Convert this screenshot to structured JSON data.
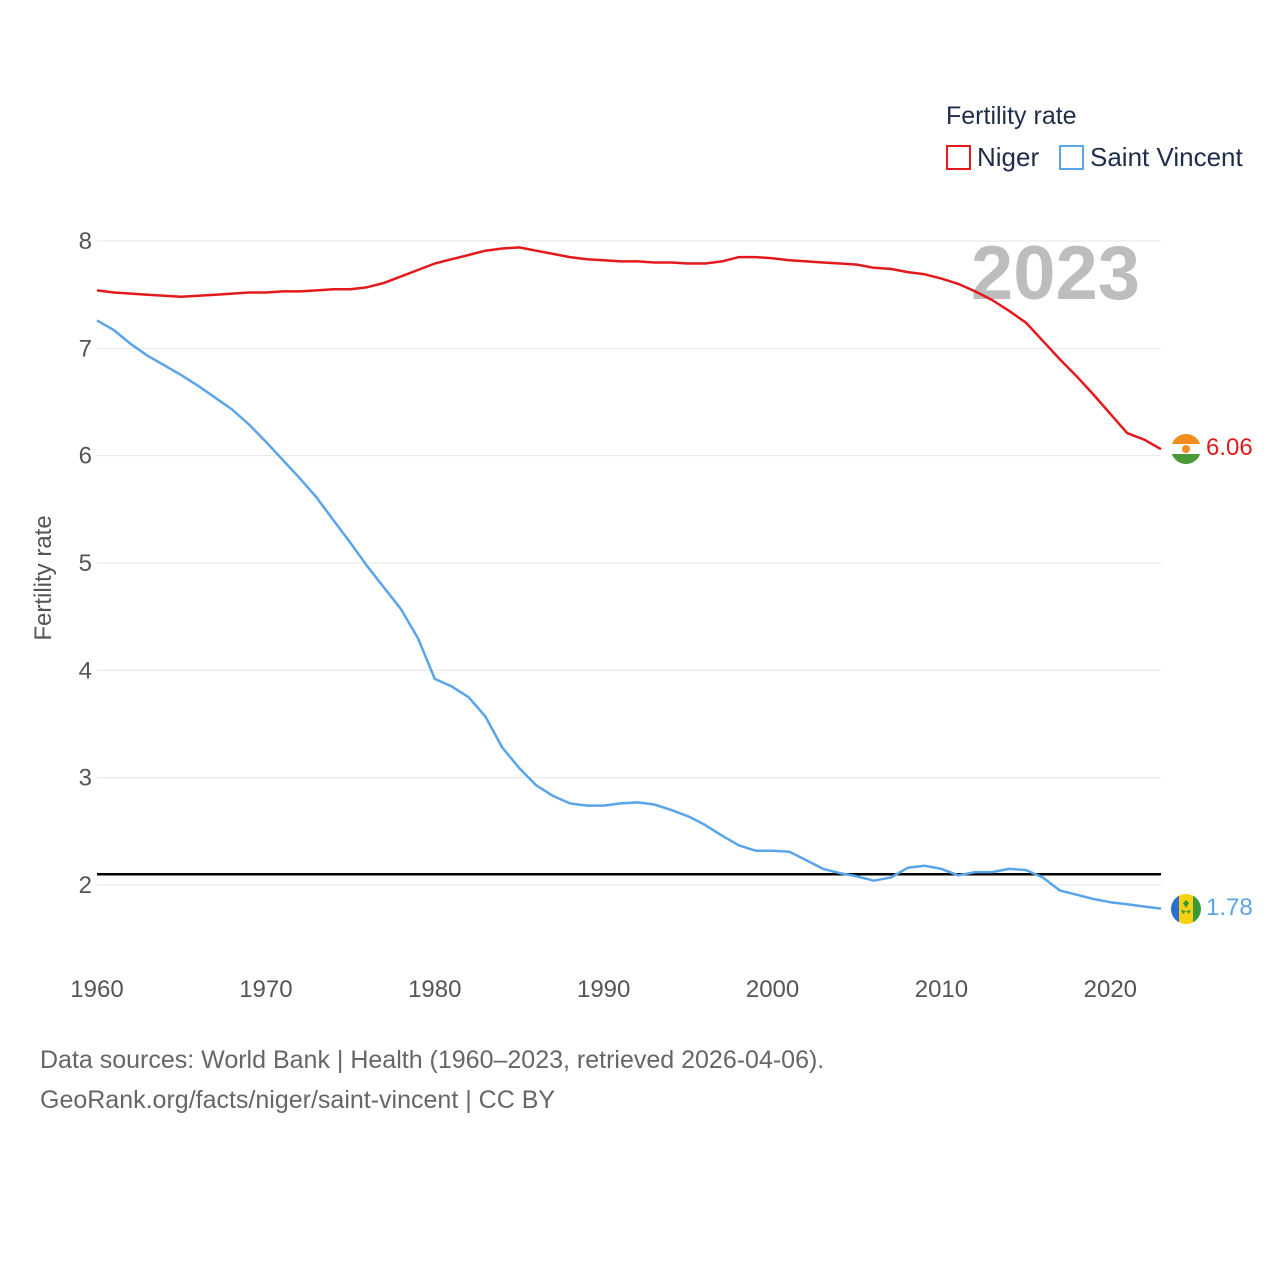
{
  "legend": {
    "title": "Fertility rate",
    "items": [
      {
        "label": "Niger",
        "color": "#e31a1c"
      },
      {
        "label": "Saint Vincent",
        "color": "#5aa5ea"
      }
    ]
  },
  "year_label": "2023",
  "end_labels": {
    "niger": "6.06",
    "saint_vincent": "1.78"
  },
  "source": {
    "line1": "Data sources: World Bank | Health (1960–2023, retrieved 2026-04-06).",
    "line2": "GeoRank.org/facts/niger/saint-vincent | CC BY"
  },
  "chart_data": {
    "type": "line",
    "title": "Fertility rate",
    "xlabel": "",
    "ylabel": "Fertility rate",
    "xlim": [
      1960,
      2023
    ],
    "ylim": [
      1.5,
      8.2
    ],
    "x_ticks": [
      1960,
      1970,
      1980,
      1990,
      2000,
      2010,
      2020
    ],
    "y_ticks": [
      2,
      3,
      4,
      5,
      6,
      7,
      8
    ],
    "grid": true,
    "legend_position": "top-right",
    "reference_line": {
      "y": 2.1,
      "color": "#000000"
    },
    "x": [
      1960,
      1961,
      1962,
      1963,
      1964,
      1965,
      1966,
      1967,
      1968,
      1969,
      1970,
      1971,
      1972,
      1973,
      1974,
      1975,
      1976,
      1977,
      1978,
      1979,
      1980,
      1981,
      1982,
      1983,
      1984,
      1985,
      1986,
      1987,
      1988,
      1989,
      1990,
      1991,
      1992,
      1993,
      1994,
      1995,
      1996,
      1997,
      1998,
      1999,
      2000,
      2001,
      2002,
      2003,
      2004,
      2005,
      2006,
      2007,
      2008,
      2009,
      2010,
      2011,
      2012,
      2013,
      2014,
      2015,
      2016,
      2017,
      2018,
      2019,
      2020,
      2021,
      2022,
      2023
    ],
    "series": [
      {
        "name": "Niger",
        "color": "#e31a1c",
        "values": [
          7.54,
          7.52,
          7.51,
          7.5,
          7.49,
          7.48,
          7.49,
          7.5,
          7.51,
          7.52,
          7.52,
          7.53,
          7.53,
          7.54,
          7.55,
          7.55,
          7.57,
          7.61,
          7.67,
          7.73,
          7.79,
          7.83,
          7.87,
          7.91,
          7.93,
          7.94,
          7.91,
          7.88,
          7.85,
          7.83,
          7.82,
          7.81,
          7.81,
          7.8,
          7.8,
          7.79,
          7.79,
          7.81,
          7.85,
          7.85,
          7.84,
          7.82,
          7.81,
          7.8,
          7.79,
          7.78,
          7.75,
          7.74,
          7.71,
          7.69,
          7.65,
          7.6,
          7.53,
          7.45,
          7.35,
          7.24,
          7.07,
          6.9,
          6.74,
          6.57,
          6.39,
          6.21,
          6.15,
          6.06
        ]
      },
      {
        "name": "Saint Vincent",
        "color": "#5aa5ea",
        "values": [
          7.26,
          7.17,
          7.04,
          6.93,
          6.84,
          6.75,
          6.65,
          6.54,
          6.43,
          6.29,
          6.13,
          5.96,
          5.79,
          5.61,
          5.4,
          5.19,
          4.97,
          4.77,
          4.57,
          4.3,
          3.92,
          3.85,
          3.75,
          3.57,
          3.28,
          3.09,
          2.93,
          2.83,
          2.76,
          2.74,
          2.74,
          2.76,
          2.77,
          2.75,
          2.7,
          2.64,
          2.56,
          2.46,
          2.37,
          2.32,
          2.32,
          2.31,
          2.23,
          2.15,
          2.11,
          2.08,
          2.04,
          2.07,
          2.16,
          2.18,
          2.15,
          2.09,
          2.12,
          2.12,
          2.15,
          2.14,
          2.07,
          1.95,
          1.91,
          1.87,
          1.84,
          1.82,
          1.8,
          1.78
        ]
      }
    ]
  }
}
